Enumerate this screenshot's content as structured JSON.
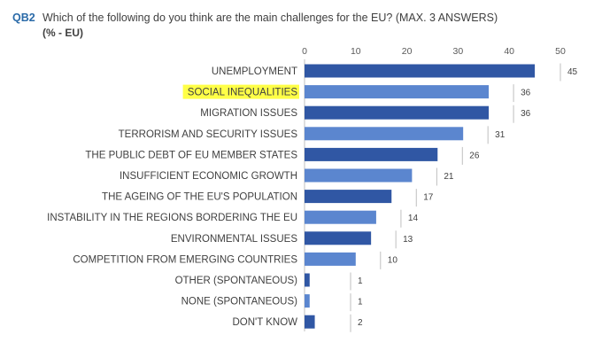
{
  "question": {
    "code": "QB2",
    "text": "Which of the following do you think are the main challenges for the EU? (MAX. 3 ANSWERS)",
    "subtitle": "(% - EU)"
  },
  "colors": {
    "dark_bar": "#3057a4",
    "light_bar": "#5b86cf",
    "highlight": "#ffff47",
    "value_line": "#bfbfbf"
  },
  "chart_data": {
    "type": "bar",
    "orientation": "horizontal",
    "xlim": [
      0,
      50
    ],
    "ticks": [
      0,
      10,
      20,
      30,
      40,
      50
    ],
    "grid": false,
    "categories": [
      "UNEMPLOYMENT",
      "SOCIAL INEQUALITIES",
      "MIGRATION ISSUES",
      "TERRORISM AND SECURITY ISSUES",
      "THE PUBLIC DEBT OF EU MEMBER STATES",
      "INSUFFICIENT ECONOMIC GROWTH",
      "THE AGEING OF THE EU'S POPULATION",
      "INSTABILITY IN THE REGIONS BORDERING THE EU",
      "ENVIRONMENTAL ISSUES",
      "COMPETITION FROM EMERGING COUNTRIES",
      "OTHER (SPONTANEOUS)",
      "NONE (SPONTANEOUS)",
      "DON'T KNOW"
    ],
    "values": [
      45,
      36,
      36,
      31,
      26,
      21,
      17,
      14,
      13,
      10,
      1,
      1,
      2
    ],
    "bar_color_keys": [
      "dark",
      "light",
      "dark",
      "light",
      "dark",
      "light",
      "dark",
      "light",
      "dark",
      "light",
      "dark",
      "light",
      "dark"
    ],
    "highlighted_category": "SOCIAL INEQUALITIES"
  }
}
